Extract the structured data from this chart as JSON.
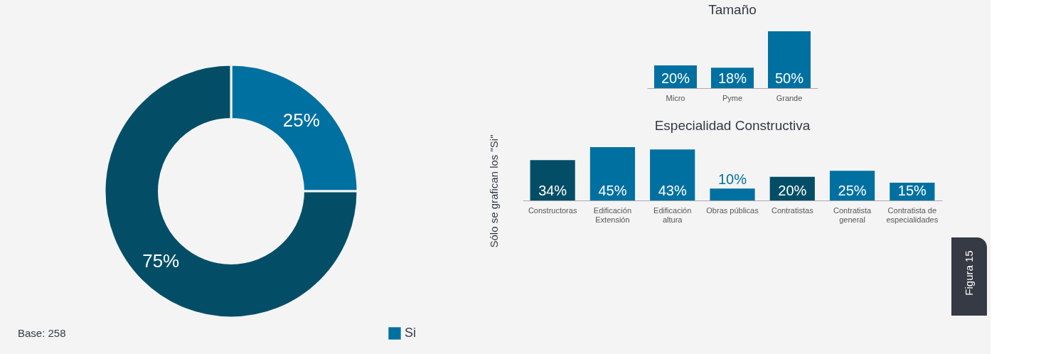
{
  "chart_data": [
    {
      "type": "donut",
      "categories": [
        "Si",
        null
      ],
      "values": [
        25,
        75
      ],
      "colors": [
        "#0070a0",
        "#034e66"
      ],
      "value_labels": [
        "25%",
        "75%"
      ],
      "legend": "bottom right",
      "annotations": [
        "Base: 258",
        "Sólo se grafican los \"Si\""
      ]
    },
    {
      "type": "bar",
      "title": "Tamaño",
      "categories": [
        "Micro",
        "Pyme",
        "Grande"
      ],
      "values": [
        20,
        18,
        50
      ],
      "colors": [
        "#0070a0",
        "#0070a0",
        "#0070a0"
      ],
      "value_labels": [
        "20%",
        "18%",
        "50%"
      ]
    },
    {
      "type": "bar",
      "title": "Especialidad Constructiva",
      "categories": [
        "Constructoras",
        "Edificación Extensión",
        "Edificación altura",
        "Obras públicas",
        "Contratistas",
        "Contratista general",
        "Contratista de especialidades"
      ],
      "values": [
        34,
        45,
        43,
        10,
        20,
        25,
        15
      ],
      "colors": [
        "#034e66",
        "#0070a0",
        "#0070a0",
        "#0070a0",
        "#034e66",
        "#0070a0",
        "#0070a0"
      ],
      "value_labels": [
        "34%",
        "45%",
        "43%",
        "10%",
        "20%",
        "25%",
        "15%"
      ],
      "annotations": [
        "Figura 15"
      ]
    }
  ]
}
